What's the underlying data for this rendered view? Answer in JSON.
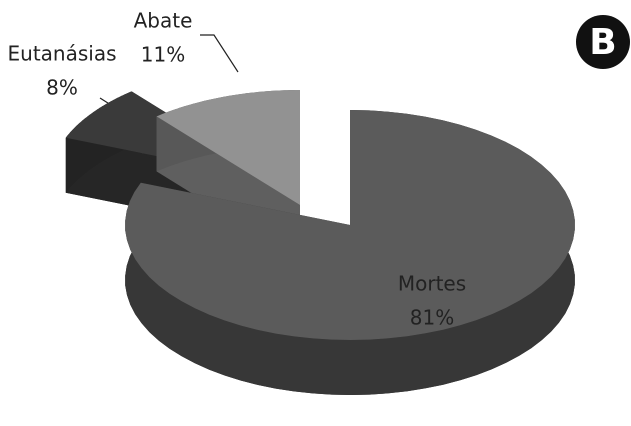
{
  "chart_data": {
    "type": "pie",
    "panel_label": "B",
    "categories": [
      "Mortes",
      "Eutanásias",
      "Abate"
    ],
    "values": [
      81,
      8,
      11
    ],
    "value_labels": [
      "81%",
      "8%",
      "11%"
    ],
    "colors": [
      "#5b5b5b",
      "#3a3a3a",
      "#929292"
    ]
  }
}
